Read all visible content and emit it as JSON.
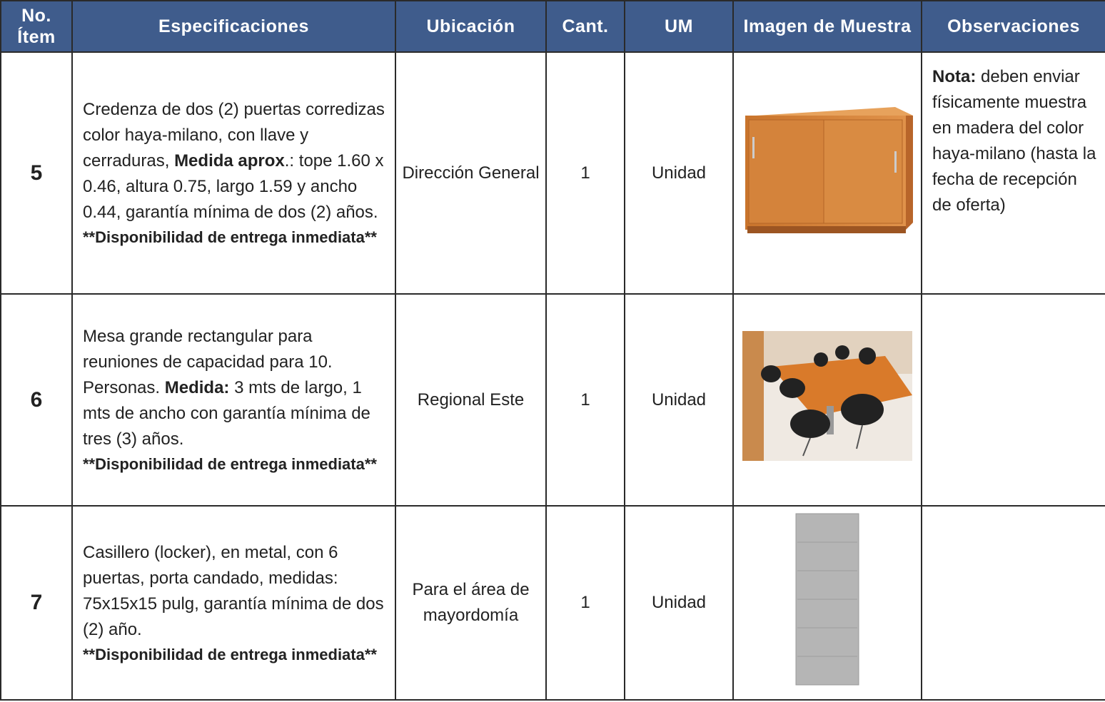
{
  "table": {
    "headers": [
      "No. Ítem",
      "Especificaciones",
      "Ubicación",
      "Cant.",
      "UM",
      "Imagen de Muestra",
      "Observaciones"
    ],
    "rows": [
      {
        "item": "5",
        "spec": [
          {
            "text": "Credenza de dos (2) puertas corredizas color haya-milano, con llave y cerraduras, ",
            "bold": false
          },
          {
            "text": "Medida aprox",
            "bold": true
          },
          {
            "text": ".: tope 1.60 x 0.46, altura 0.75, largo 1.59 y ancho 0.44, garantía mínima de dos (2) años.",
            "bold": false
          }
        ],
        "note": "**Disponibilidad de entrega inmediata**",
        "location": "Dirección General",
        "quantity": "1",
        "unit": "Unidad",
        "observations": [
          {
            "text": "Nota:",
            "bold": true
          },
          {
            "text": " deben enviar físicamente muestra en madera del color haya-milano (hasta la fecha de recepción de oferta)",
            "bold": false
          }
        ]
      },
      {
        "item": "6",
        "spec": [
          {
            "text": "Mesa grande rectangular para reuniones de capacidad para 10. Personas. ",
            "bold": false
          },
          {
            "text": "Medida:",
            "bold": true
          },
          {
            "text": " 3 mts de largo, 1 mts de ancho con garantía mínima de tres (3) años.",
            "bold": false
          }
        ],
        "note": "**Disponibilidad de entrega inmediata**",
        "location": "Regional Este",
        "quantity": "1",
        "unit": "Unidad",
        "observations": []
      },
      {
        "item": "7",
        "spec": [
          {
            "text": "Casillero (locker), en metal, con 6 puertas, porta candado, medidas: 75x15x15 pulg, garantía mínima de dos (2) año.",
            "bold": false
          }
        ],
        "note": "**Disponibilidad de entrega inmediata**",
        "location": "Para el área de mayordomía",
        "quantity": "1",
        "unit": "Unidad",
        "observations": []
      }
    ]
  }
}
